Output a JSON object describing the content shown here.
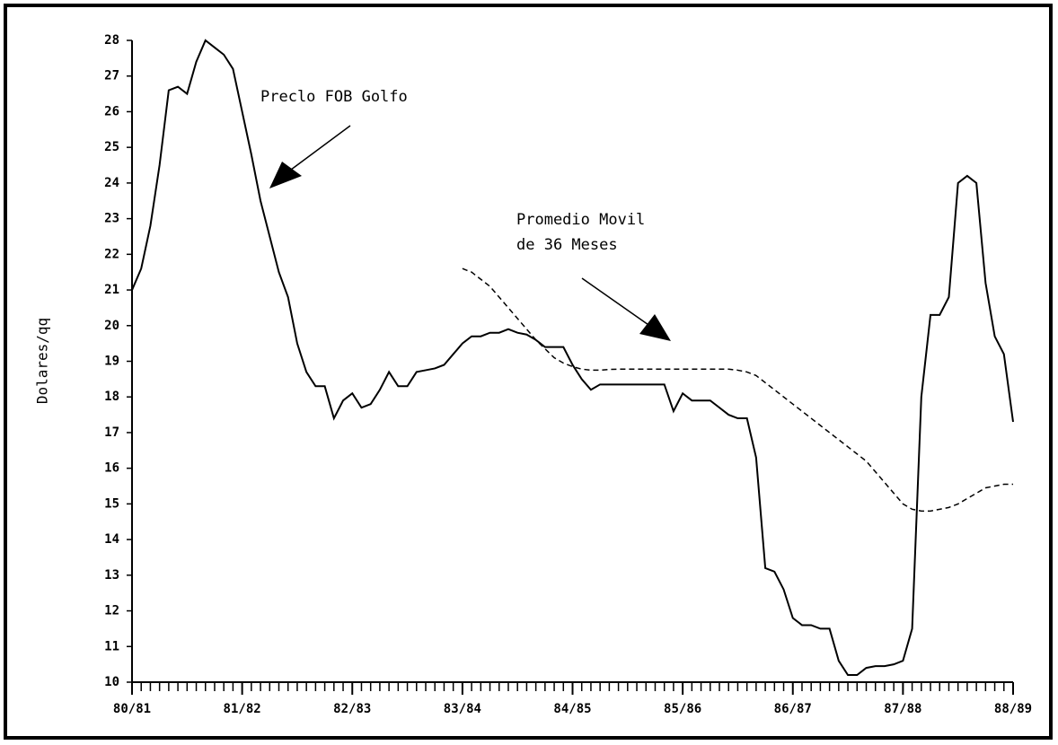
{
  "chart_data": {
    "type": "line",
    "ylabel": "Dolares/qq",
    "annotations": [
      "Preclo FOB Golfo",
      "Promedio Movil",
      "de 36 Meses"
    ],
    "x": [
      0,
      1,
      2,
      3,
      4,
      5,
      6,
      7,
      8,
      9,
      10,
      11,
      12,
      13,
      14,
      15,
      16,
      17,
      18,
      19,
      20,
      21,
      22,
      23,
      24,
      25,
      26,
      27,
      28,
      29,
      30,
      31,
      32,
      33,
      34,
      35,
      36,
      37,
      38,
      39,
      40,
      41,
      42,
      43,
      44,
      45,
      46,
      47,
      48,
      49,
      50,
      51,
      52,
      53,
      54,
      55,
      56,
      57,
      58,
      59,
      60,
      61,
      62,
      63,
      64,
      65,
      66,
      67,
      68,
      69,
      70,
      71,
      72,
      73,
      74,
      75,
      76,
      77,
      78,
      79,
      80,
      81,
      82,
      83,
      84,
      85,
      86,
      87,
      88,
      89,
      90,
      91,
      92,
      93,
      94,
      95,
      96
    ],
    "series": [
      {
        "color": "#000000",
        "dash": false,
        "values": [
          21.0,
          21.6,
          22.8,
          24.5,
          26.6,
          26.7,
          26.5,
          27.4,
          28.0,
          27.8,
          27.6,
          27.2,
          26.0,
          24.8,
          23.5,
          22.5,
          21.5,
          20.8,
          19.5,
          18.7,
          18.3,
          18.3,
          17.4,
          17.9,
          18.1,
          17.7,
          17.8,
          18.2,
          18.7,
          18.3,
          18.3,
          18.7,
          18.75,
          18.8,
          18.9,
          19.2,
          19.5,
          19.7,
          19.7,
          19.8,
          19.8,
          19.9,
          19.8,
          19.75,
          19.6,
          19.4,
          19.4,
          19.4,
          18.9,
          18.5,
          18.2,
          18.35,
          18.35,
          18.35,
          18.35,
          18.35,
          18.35,
          18.35,
          18.35,
          17.6,
          18.1,
          17.9,
          17.9,
          17.9,
          17.7,
          17.5,
          17.4,
          17.4,
          16.3,
          13.2,
          13.1,
          12.6,
          11.8,
          11.6,
          11.6,
          11.5,
          11.5,
          10.6,
          10.2,
          10.2,
          10.4,
          10.45,
          10.45,
          10.5,
          10.6,
          11.5,
          18.0,
          20.3,
          20.3,
          20.8,
          24.0,
          24.2,
          24.0,
          21.2,
          19.7,
          19.2,
          17.3
        ]
      },
      {
        "color": "#000000",
        "dash": true,
        "values": [
          null,
          null,
          null,
          null,
          null,
          null,
          null,
          null,
          null,
          null,
          null,
          null,
          null,
          null,
          null,
          null,
          null,
          null,
          null,
          null,
          null,
          null,
          null,
          null,
          null,
          null,
          null,
          null,
          null,
          null,
          null,
          null,
          null,
          null,
          null,
          null,
          21.6,
          21.5,
          21.3,
          21.1,
          20.8,
          20.5,
          20.2,
          19.9,
          19.6,
          19.35,
          19.1,
          18.95,
          18.85,
          18.78,
          18.75,
          18.75,
          18.77,
          18.78,
          18.78,
          18.78,
          18.78,
          18.78,
          18.78,
          18.78,
          18.78,
          18.78,
          18.78,
          18.78,
          18.78,
          18.78,
          18.75,
          18.7,
          18.6,
          18.4,
          18.2,
          18.0,
          17.8,
          17.6,
          17.4,
          17.2,
          17.0,
          16.8,
          16.6,
          16.4,
          16.2,
          15.9,
          15.6,
          15.3,
          15.0,
          14.85,
          14.8,
          14.8,
          14.85,
          14.9,
          15.0,
          15.15,
          15.3,
          15.45,
          15.5,
          15.55,
          15.55
        ]
      }
    ],
    "xlim": [
      0,
      96
    ],
    "xticks": [
      {
        "value": 0,
        "label": "80/81"
      },
      {
        "value": 12,
        "label": "81/82"
      },
      {
        "value": 24,
        "label": "82/83"
      },
      {
        "value": 36,
        "label": "83/84"
      },
      {
        "value": 48,
        "label": "84/85"
      },
      {
        "value": 60,
        "label": "85/86"
      },
      {
        "value": 72,
        "label": "86/87"
      },
      {
        "value": 84,
        "label": "87/88"
      },
      {
        "value": 96,
        "label": "88/89"
      }
    ],
    "minor_ticks": true,
    "ylim": [
      10,
      28
    ],
    "yticks": [
      10,
      11,
      12,
      13,
      14,
      15,
      16,
      17,
      18,
      19,
      20,
      21,
      22,
      23,
      24,
      25,
      26,
      27,
      28
    ]
  }
}
